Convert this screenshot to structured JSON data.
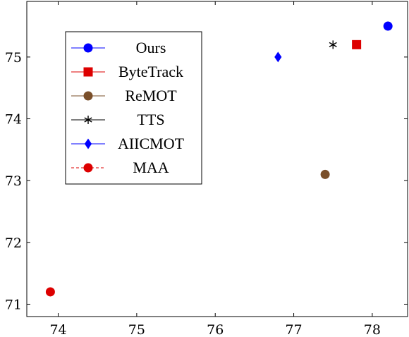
{
  "chart_data": {
    "type": "scatter",
    "title": "",
    "xlabel": "",
    "ylabel": "",
    "xlim": [
      73.6,
      78.45
    ],
    "ylim": [
      70.8,
      75.9
    ],
    "x_ticks": [
      74,
      75,
      76,
      77,
      78
    ],
    "y_ticks": [
      71,
      72,
      73,
      74,
      75
    ],
    "x_tick_labels": [
      "74",
      "75",
      "76",
      "77",
      "78"
    ],
    "y_tick_labels": [
      "71",
      "72",
      "73",
      "74",
      "75"
    ],
    "grid": false,
    "legend_position": "top-left",
    "series": [
      {
        "name": "Ours",
        "x": [
          78.2
        ],
        "y": [
          75.5
        ],
        "color": "#0000ff",
        "marker": "circle",
        "line": "solid"
      },
      {
        "name": "ByteTrack",
        "x": [
          77.8
        ],
        "y": [
          75.2
        ],
        "color": "#dd0000",
        "marker": "square",
        "line": "solid"
      },
      {
        "name": "ReMOT",
        "x": [
          77.4
        ],
        "y": [
          73.1
        ],
        "color": "#7a4f2a",
        "marker": "circle",
        "line": "solid"
      },
      {
        "name": "TTS",
        "x": [
          77.5
        ],
        "y": [
          75.2
        ],
        "color": "#000000",
        "marker": "star",
        "line": "solid"
      },
      {
        "name": "AIICMOT",
        "x": [
          76.8
        ],
        "y": [
          75.0
        ],
        "color": "#0000ff",
        "marker": "diamond",
        "line": "solid"
      },
      {
        "name": "MAA",
        "x": [
          73.9
        ],
        "y": [
          71.2
        ],
        "color": "#dd0000",
        "marker": "circle",
        "line": "dashed"
      }
    ]
  }
}
